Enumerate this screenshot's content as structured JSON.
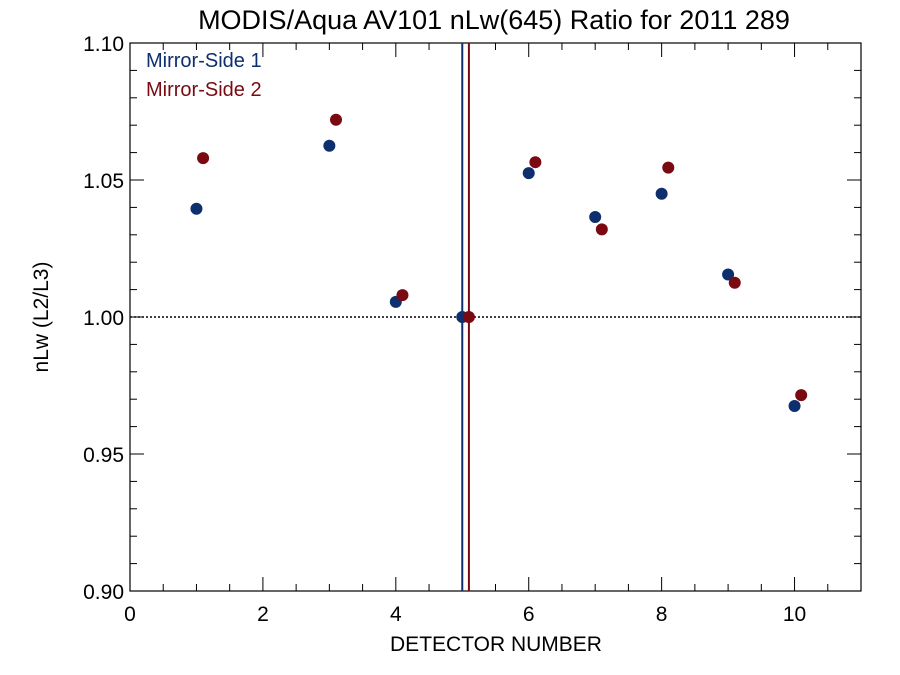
{
  "chart_data": {
    "type": "scatter",
    "title": "MODIS/Aqua AV101 nLw(645) Ratio for 2011 289",
    "xlabel": "DETECTOR NUMBER",
    "ylabel": "nLw (L2/L3)",
    "xlim": [
      0,
      11
    ],
    "ylim": [
      0.9,
      1.1
    ],
    "x_ticks": [
      0,
      2,
      4,
      6,
      8,
      10
    ],
    "x_tick_labels": [
      "0",
      "2",
      "4",
      "6",
      "8",
      "10"
    ],
    "y_ticks": [
      0.9,
      0.95,
      1.0,
      1.05,
      1.1
    ],
    "y_tick_labels": [
      "0.90",
      "0.95",
      "1.00",
      "1.05",
      "1.10"
    ],
    "reference_line_y": 1.0,
    "grid": false,
    "legend_position": "top-left",
    "series": [
      {
        "name": "Mirror-Side 1",
        "color": "#0d2f6e",
        "x": [
          1,
          3,
          4,
          5,
          6,
          7,
          8,
          9,
          10
        ],
        "y": [
          1.0395,
          1.0625,
          1.0055,
          1.0,
          1.0525,
          1.0365,
          1.045,
          1.0155,
          0.9675
        ],
        "vertical_line_x": 5.0
      },
      {
        "name": "Mirror-Side 2",
        "color": "#7a0a12",
        "x": [
          1.1,
          3.1,
          4.1,
          5.1,
          6.1,
          7.1,
          8.1,
          9.1,
          10.1
        ],
        "y": [
          1.058,
          1.072,
          1.008,
          1.0,
          1.0565,
          1.032,
          1.0545,
          1.0125,
          0.9715
        ],
        "vertical_line_x": 5.1
      }
    ]
  }
}
